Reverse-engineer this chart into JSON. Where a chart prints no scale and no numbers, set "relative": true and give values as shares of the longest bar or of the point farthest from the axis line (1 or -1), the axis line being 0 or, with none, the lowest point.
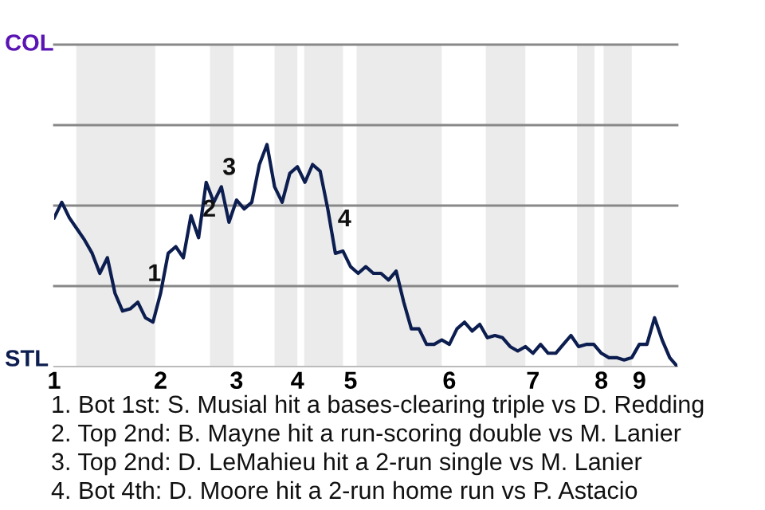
{
  "chart_data": {
    "type": "line",
    "relative": true,
    "categories": [
      "1",
      null,
      null,
      null,
      null,
      null,
      null,
      null,
      null,
      null,
      null,
      null,
      null,
      null,
      "2",
      null,
      null,
      null,
      null,
      null,
      null,
      null,
      null,
      null,
      "3",
      null,
      null,
      null,
      null,
      null,
      null,
      null,
      "4",
      null,
      null,
      null,
      null,
      null,
      null,
      "5",
      null,
      null,
      null,
      null,
      null,
      null,
      null,
      null,
      null,
      null,
      null,
      null,
      "6",
      null,
      null,
      null,
      null,
      null,
      null,
      null,
      null,
      null,
      null,
      "7",
      null,
      null,
      null,
      null,
      null,
      null,
      null,
      null,
      "8",
      null,
      null,
      null,
      null,
      "9",
      null,
      null,
      null,
      null,
      null
    ],
    "series": [
      {
        "color": "#0c1d4f",
        "values": [
          0.67,
          0.74,
          0.67,
          0.62,
          0.57,
          0.51,
          0.42,
          0.49,
          0.33,
          0.25,
          0.26,
          0.29,
          0.22,
          0.2,
          0.33,
          0.51,
          0.54,
          0.49,
          0.68,
          0.58,
          0.83,
          0.74,
          0.81,
          0.65,
          0.75,
          0.71,
          0.74,
          0.91,
          1,
          0.81,
          0.74,
          0.87,
          0.9,
          0.83,
          0.91,
          0.88,
          0.71,
          0.51,
          0.52,
          0.45,
          0.42,
          0.45,
          0.42,
          0.42,
          0.39,
          0.43,
          0.29,
          0.17,
          0.17,
          0.1,
          0.1,
          0.12,
          0.1,
          0.17,
          0.2,
          0.16,
          0.19,
          0.13,
          0.14,
          0.13,
          0.09,
          0.07,
          0.09,
          0.06,
          0.1,
          0.06,
          0.06,
          0.1,
          0.14,
          0.09,
          0.1,
          0.1,
          0.06,
          0.04,
          0.04,
          0.03,
          0.04,
          0.1,
          0.1,
          0.22,
          0.12,
          0.04,
          0
        ]
      }
    ],
    "ref_lines": [
      {
        "axis": "y",
        "value": 0.3625,
        "color": "#888888"
      },
      {
        "axis": "y",
        "value": 0.725,
        "color": "#888888"
      },
      {
        "axis": "y",
        "value": 1.0875,
        "color": "#888888"
      },
      {
        "axis": "y",
        "value": 1.45,
        "color": "#888888"
      }
    ],
    "annotations": [
      "COL",
      "STL",
      "1",
      "2",
      "3",
      "4",
      "1. Bot 1st: S. Musial hit a bases-clearing triple vs D. Redding",
      "2. Top 2nd: B. Mayne hit a run-scoring double vs M. Lanier",
      "3. Top 2nd: D. LeMahieu hit a 2-run single vs M. Lanier",
      "4. Bot 4th: D. Moore hit a 2-run home run vs P. Astacio"
    ]
  }
}
